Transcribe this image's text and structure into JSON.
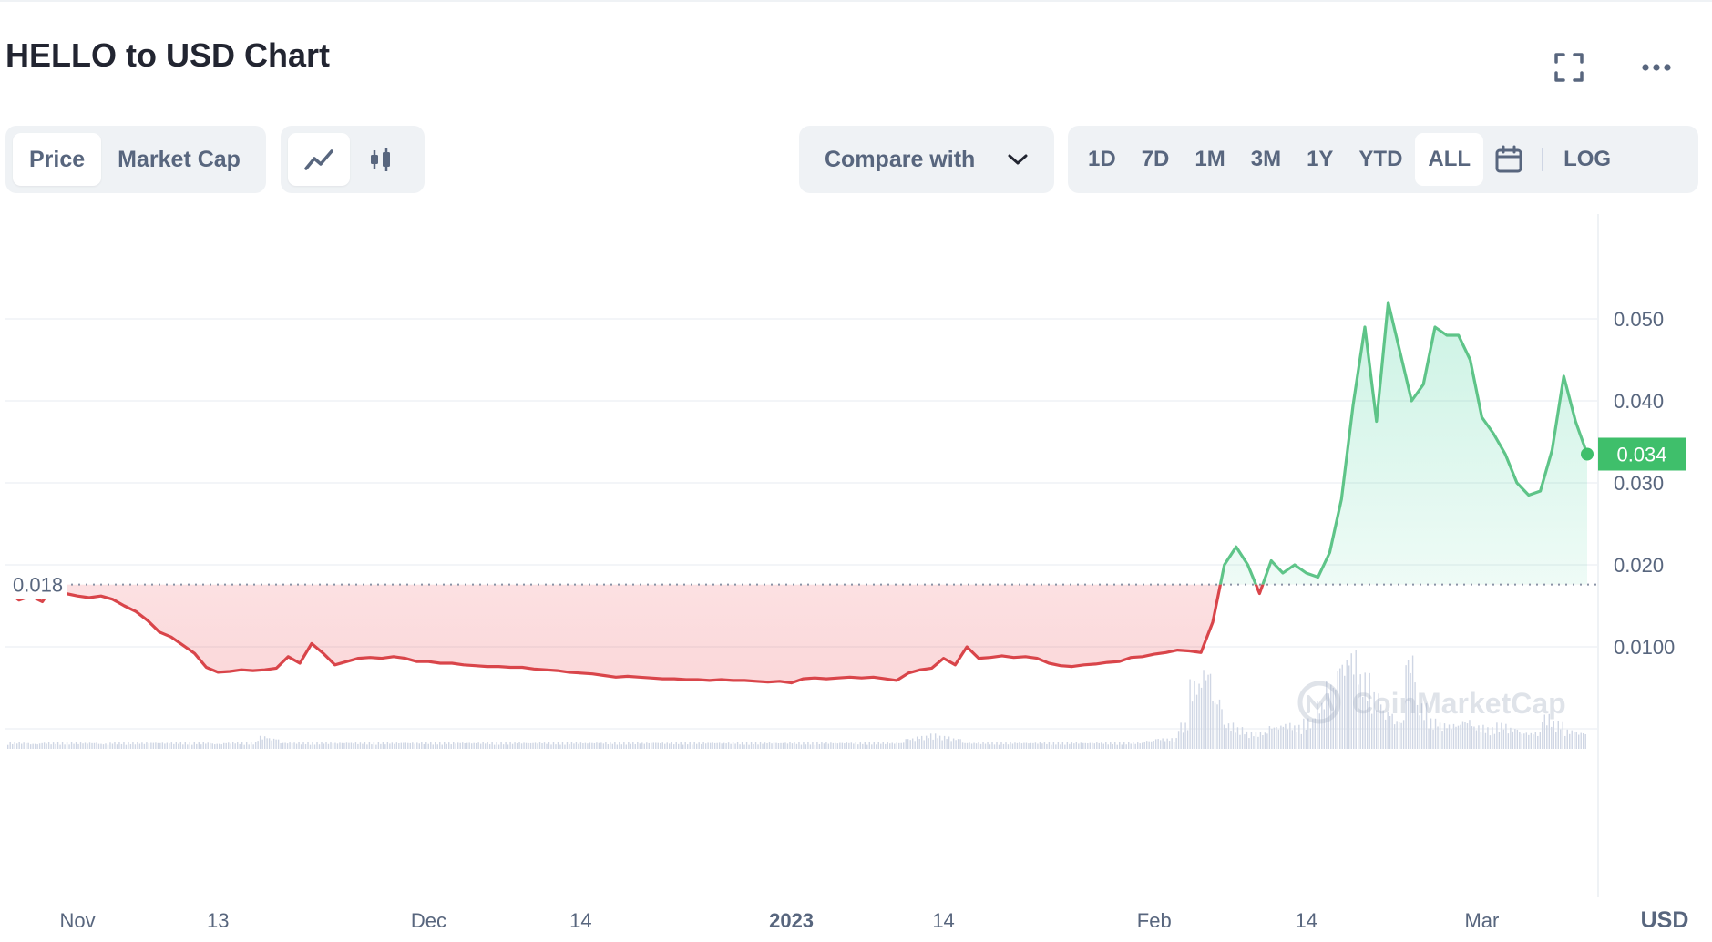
{
  "title": "HELLO to USD Chart",
  "toolbar": {
    "metric_tabs": [
      {
        "label": "Price",
        "active": true
      },
      {
        "label": "Market Cap",
        "active": false
      }
    ],
    "chart_type_icons": [
      "line-chart-icon",
      "candlestick-icon"
    ],
    "compare_label": "Compare with",
    "ranges": [
      {
        "label": "1D",
        "active": false
      },
      {
        "label": "7D",
        "active": false
      },
      {
        "label": "1M",
        "active": false
      },
      {
        "label": "3M",
        "active": false
      },
      {
        "label": "1Y",
        "active": false
      },
      {
        "label": "YTD",
        "active": false
      },
      {
        "label": "ALL",
        "active": true
      }
    ],
    "log_label": "LOG",
    "icons": [
      "fullscreen-icon",
      "more-icon",
      "calendar-icon",
      "chevron-down-icon"
    ]
  },
  "colors": {
    "up": "#16c784",
    "up_line": "#5ec488",
    "down": "#ea3943",
    "down_line": "#d9454a",
    "grid": "#eff2f5",
    "axis_text": "#58667e",
    "current_badge": "#3fbf6b"
  },
  "chart_data": {
    "type": "line",
    "title": "HELLO to USD Chart",
    "xlabel": "",
    "ylabel": "",
    "y_unit_label": "USD",
    "ylim": [
      0,
      0.06
    ],
    "y_ticks": [
      {
        "value": 0.05,
        "label": "0.050"
      },
      {
        "value": 0.04,
        "label": "0.040"
      },
      {
        "value": 0.03,
        "label": "0.030"
      },
      {
        "value": 0.02,
        "label": "0.020"
      },
      {
        "value": 0.01,
        "label": "0.0100"
      }
    ],
    "x_ticks": [
      {
        "date": "2022-11-01",
        "label": "Nov",
        "bold": false
      },
      {
        "date": "2022-11-13",
        "label": "13",
        "bold": false
      },
      {
        "date": "2022-12-01",
        "label": "Dec",
        "bold": false
      },
      {
        "date": "2022-12-14",
        "label": "14",
        "bold": false
      },
      {
        "date": "2023-01-01",
        "label": "2023",
        "bold": true
      },
      {
        "date": "2023-01-14",
        "label": "14",
        "bold": false
      },
      {
        "date": "2023-02-01",
        "label": "Feb",
        "bold": false
      },
      {
        "date": "2023-02-14",
        "label": "14",
        "bold": false
      },
      {
        "date": "2023-03-01",
        "label": "Mar",
        "bold": false
      }
    ],
    "baseline": {
      "value": 0.0176,
      "label": "0.018"
    },
    "current": {
      "value": 0.0335,
      "label": "0.034"
    },
    "watermark": "CoinMarketCap",
    "x_range": [
      "2022-10-26",
      "2023-03-10"
    ],
    "series": [
      {
        "points": [
          [
            "2022-10-26",
            0.0168
          ],
          [
            "2022-10-27",
            0.0157
          ],
          [
            "2022-10-28",
            0.0162
          ],
          [
            "2022-10-29",
            0.0155
          ],
          [
            "2022-10-30",
            0.0176
          ],
          [
            "2022-10-31",
            0.0165
          ],
          [
            "2022-11-01",
            0.0162
          ],
          [
            "2022-11-02",
            0.016
          ],
          [
            "2022-11-03",
            0.0162
          ],
          [
            "2022-11-04",
            0.0158
          ],
          [
            "2022-11-05",
            0.015
          ],
          [
            "2022-11-06",
            0.0143
          ],
          [
            "2022-11-07",
            0.0132
          ],
          [
            "2022-11-08",
            0.0118
          ],
          [
            "2022-11-09",
            0.0112
          ],
          [
            "2022-11-10",
            0.0102
          ],
          [
            "2022-11-11",
            0.0092
          ],
          [
            "2022-11-12",
            0.0075
          ],
          [
            "2022-11-13",
            0.0069
          ],
          [
            "2022-11-14",
            0.007
          ],
          [
            "2022-11-15",
            0.0072
          ],
          [
            "2022-11-16",
            0.0071
          ],
          [
            "2022-11-17",
            0.0072
          ],
          [
            "2022-11-18",
            0.0074
          ],
          [
            "2022-11-19",
            0.0088
          ],
          [
            "2022-11-20",
            0.008
          ],
          [
            "2022-11-21",
            0.0104
          ],
          [
            "2022-11-22",
            0.0092
          ],
          [
            "2022-11-23",
            0.0078
          ],
          [
            "2022-11-24",
            0.0082
          ],
          [
            "2022-11-25",
            0.0086
          ],
          [
            "2022-11-26",
            0.0087
          ],
          [
            "2022-11-27",
            0.0086
          ],
          [
            "2022-11-28",
            0.0088
          ],
          [
            "2022-11-29",
            0.0086
          ],
          [
            "2022-11-30",
            0.0082
          ],
          [
            "2022-12-01",
            0.0082
          ],
          [
            "2022-12-02",
            0.008
          ],
          [
            "2022-12-03",
            0.008
          ],
          [
            "2022-12-04",
            0.0078
          ],
          [
            "2022-12-05",
            0.0077
          ],
          [
            "2022-12-06",
            0.0076
          ],
          [
            "2022-12-07",
            0.0076
          ],
          [
            "2022-12-08",
            0.0075
          ],
          [
            "2022-12-09",
            0.0075
          ],
          [
            "2022-12-10",
            0.0073
          ],
          [
            "2022-12-11",
            0.0072
          ],
          [
            "2022-12-12",
            0.0071
          ],
          [
            "2022-12-13",
            0.0069
          ],
          [
            "2022-12-14",
            0.0068
          ],
          [
            "2022-12-15",
            0.0067
          ],
          [
            "2022-12-16",
            0.0065
          ],
          [
            "2022-12-17",
            0.0063
          ],
          [
            "2022-12-18",
            0.0064
          ],
          [
            "2022-12-19",
            0.0063
          ],
          [
            "2022-12-20",
            0.0062
          ],
          [
            "2022-12-21",
            0.0061
          ],
          [
            "2022-12-22",
            0.0061
          ],
          [
            "2022-12-23",
            0.006
          ],
          [
            "2022-12-24",
            0.006
          ],
          [
            "2022-12-25",
            0.0059
          ],
          [
            "2022-12-26",
            0.006
          ],
          [
            "2022-12-27",
            0.0059
          ],
          [
            "2022-12-28",
            0.0059
          ],
          [
            "2022-12-29",
            0.0058
          ],
          [
            "2022-12-30",
            0.0057
          ],
          [
            "2022-12-31",
            0.0058
          ],
          [
            "2023-01-01",
            0.0056
          ],
          [
            "2023-01-02",
            0.0061
          ],
          [
            "2023-01-03",
            0.0062
          ],
          [
            "2023-01-04",
            0.0061
          ],
          [
            "2023-01-05",
            0.0062
          ],
          [
            "2023-01-06",
            0.0063
          ],
          [
            "2023-01-07",
            0.0062
          ],
          [
            "2023-01-08",
            0.0063
          ],
          [
            "2023-01-09",
            0.0061
          ],
          [
            "2023-01-10",
            0.0059
          ],
          [
            "2023-01-11",
            0.0068
          ],
          [
            "2023-01-12",
            0.0072
          ],
          [
            "2023-01-13",
            0.0074
          ],
          [
            "2023-01-14",
            0.0086
          ],
          [
            "2023-01-15",
            0.0078
          ],
          [
            "2023-01-16",
            0.01
          ],
          [
            "2023-01-17",
            0.0086
          ],
          [
            "2023-01-18",
            0.0087
          ],
          [
            "2023-01-19",
            0.0089
          ],
          [
            "2023-01-20",
            0.0087
          ],
          [
            "2023-01-21",
            0.0088
          ],
          [
            "2023-01-22",
            0.0086
          ],
          [
            "2023-01-23",
            0.008
          ],
          [
            "2023-01-24",
            0.0077
          ],
          [
            "2023-01-25",
            0.0076
          ],
          [
            "2023-01-26",
            0.0078
          ],
          [
            "2023-01-27",
            0.0079
          ],
          [
            "2023-01-28",
            0.0081
          ],
          [
            "2023-01-29",
            0.0082
          ],
          [
            "2023-01-30",
            0.0087
          ],
          [
            "2023-01-31",
            0.0088
          ],
          [
            "2023-02-01",
            0.0091
          ],
          [
            "2023-02-02",
            0.0093
          ],
          [
            "2023-02-03",
            0.0096
          ],
          [
            "2023-02-04",
            0.0095
          ],
          [
            "2023-02-05",
            0.0093
          ],
          [
            "2023-02-06",
            0.013
          ],
          [
            "2023-02-07",
            0.02
          ],
          [
            "2023-02-08",
            0.0222
          ],
          [
            "2023-02-09",
            0.02
          ],
          [
            "2023-02-10",
            0.0165
          ],
          [
            "2023-02-11",
            0.0205
          ],
          [
            "2023-02-12",
            0.019
          ],
          [
            "2023-02-13",
            0.02
          ],
          [
            "2023-02-14",
            0.019
          ],
          [
            "2023-02-15",
            0.0185
          ],
          [
            "2023-02-16",
            0.0215
          ],
          [
            "2023-02-17",
            0.028
          ],
          [
            "2023-02-18",
            0.0395
          ],
          [
            "2023-02-19",
            0.049
          ],
          [
            "2023-02-20",
            0.0375
          ],
          [
            "2023-02-21",
            0.052
          ],
          [
            "2023-02-22",
            0.046
          ],
          [
            "2023-02-23",
            0.04
          ],
          [
            "2023-02-24",
            0.042
          ],
          [
            "2023-02-25",
            0.049
          ],
          [
            "2023-02-26",
            0.048
          ],
          [
            "2023-02-27",
            0.048
          ],
          [
            "2023-02-28",
            0.045
          ],
          [
            "2023-03-01",
            0.038
          ],
          [
            "2023-03-02",
            0.036
          ],
          [
            "2023-03-03",
            0.0335
          ],
          [
            "2023-03-04",
            0.03
          ],
          [
            "2023-03-05",
            0.0285
          ],
          [
            "2023-03-06",
            0.029
          ],
          [
            "2023-03-07",
            0.034
          ],
          [
            "2023-03-08",
            0.043
          ],
          [
            "2023-03-09",
            0.0375
          ],
          [
            "2023-03-10",
            0.0335
          ]
        ]
      }
    ],
    "volume": [
      0.3,
      0.3,
      0.25,
      0.3,
      0.3,
      0.3,
      0.3,
      0.3,
      0.25,
      0.3,
      0.3,
      0.3,
      0.3,
      0.3,
      0.3,
      0.3,
      0.3,
      0.3,
      0.25,
      0.3,
      0.3,
      0.3,
      0.6,
      0.5,
      0.3,
      0.3,
      0.3,
      0.3,
      0.3,
      0.3,
      0.3,
      0.3,
      0.3,
      0.3,
      0.3,
      0.3,
      0.3,
      0.3,
      0.3,
      0.3,
      0.3,
      0.3,
      0.3,
      0.3,
      0.3,
      0.3,
      0.3,
      0.3,
      0.3,
      0.3,
      0.3,
      0.3,
      0.3,
      0.3,
      0.3,
      0.3,
      0.3,
      0.3,
      0.3,
      0.3,
      0.3,
      0.3,
      0.3,
      0.3,
      0.3,
      0.3,
      0.3,
      0.3,
      0.3,
      0.3,
      0.3,
      0.3,
      0.3,
      0.3,
      0.3,
      0.3,
      0.3,
      0.3,
      0.3,
      0.5,
      0.6,
      0.7,
      0.6,
      0.5,
      0.3,
      0.3,
      0.3,
      0.3,
      0.3,
      0.3,
      0.3,
      0.3,
      0.3,
      0.3,
      0.3,
      0.3,
      0.3,
      0.3,
      0.3,
      0.3,
      0.4,
      0.5,
      0.5,
      1.2,
      3.2,
      3.8,
      2.4,
      1.2,
      1.0,
      0.8,
      0.8,
      1.1,
      1.2,
      1.1,
      1.4,
      2.2,
      3.2,
      4.2,
      4.6,
      3.5,
      2.6,
      1.8,
      1.4,
      4.4,
      2.1,
      1.4,
      1.2,
      1.2,
      1.4,
      1.1,
      1.0,
      1.2,
      1.0,
      0.8,
      0.8,
      1.6,
      1.3,
      0.9,
      0.8
    ]
  }
}
